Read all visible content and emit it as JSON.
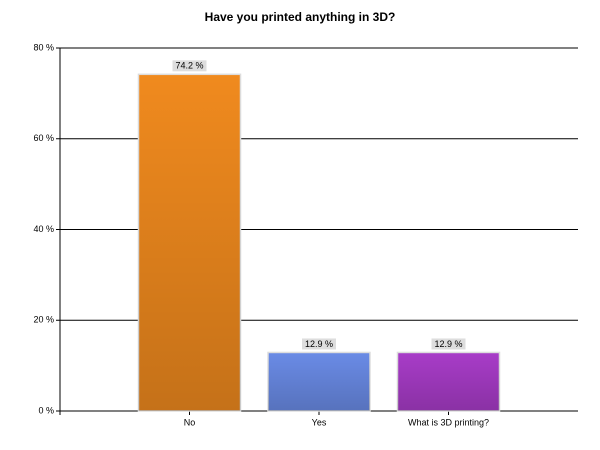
{
  "chart_data": {
    "type": "bar",
    "title": "Have you printed anything in 3D?",
    "categories": [
      "No",
      "Yes",
      "What is 3D printing?"
    ],
    "values": [
      74.2,
      12.9,
      12.9
    ],
    "value_labels": [
      "74.2 %",
      "12.9 %",
      "12.9 %"
    ],
    "colors": [
      "#f08a1e",
      "#6a8be6",
      "#a83cc8"
    ],
    "ylim": [
      0,
      80
    ],
    "yticks": [
      {
        "value": 0,
        "label": "0 %"
      },
      {
        "value": 20,
        "label": "20 %"
      },
      {
        "value": 40,
        "label": "40 %"
      },
      {
        "value": 60,
        "label": "60 %"
      },
      {
        "value": 80,
        "label": "80 %"
      }
    ],
    "grid": true
  }
}
